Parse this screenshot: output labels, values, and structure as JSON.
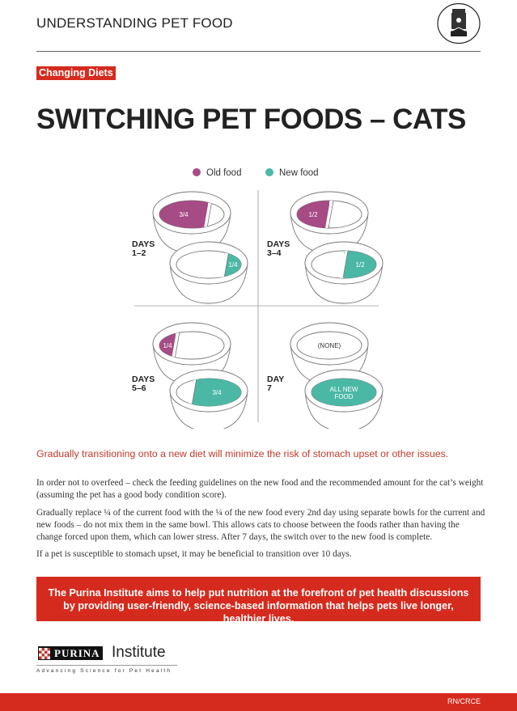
{
  "header": {
    "title": "UNDERSTANDING PET FOOD",
    "icon": "pet-food-bag-icon"
  },
  "badge": "Changing Diets",
  "title": "SWITCHING PET FOODS – CATS",
  "legend": {
    "old": "Old food",
    "new": "New food"
  },
  "colors": {
    "old": "#a64b84",
    "new": "#4bb8a6",
    "accent": "#d52b1e"
  },
  "quadrants": [
    {
      "label1": "DAYS",
      "label2": "1–2",
      "old": 0.75,
      "new": 0.25,
      "old_text": "3/4",
      "new_text": "1/4"
    },
    {
      "label1": "DAYS",
      "label2": "3–4",
      "old": 0.5,
      "new": 0.5,
      "old_text": "1/2",
      "new_text": "1/2"
    },
    {
      "label1": "DAYS",
      "label2": "5–6",
      "old": 0.25,
      "new": 0.75,
      "old_text": "1/4",
      "new_text": "3/4"
    },
    {
      "label1": "DAY",
      "label2": "7",
      "old": 0,
      "new": 1,
      "old_text": "(NONE)",
      "new_text": "ALL NEW FOOD"
    }
  ],
  "caption": "Gradually transitioning onto a new diet will minimize the risk of stomach upset or other issues.",
  "paragraphs": [
    "In order not to overfeed – check the feeding guidelines on the new food and the recommended amount for the cat’s weight (assuming the pet has a good body condition score).",
    "Gradually replace ¼ of the current food with the ¼ of the new food every 2nd day using separate bowls for the current and new foods – do not mix them in the same bowl. This allows cats to choose between the foods rather than having the change forced upon them, which can lower stress. After 7 days, the switch over to the new food is complete.",
    "If a pet is susceptible to stomach upset, it may be beneficial to transition over 10 days."
  ],
  "callout": "The Purina Institute aims to help put nutrition at the forefront of pet health discussions by providing user-friendly, science-based information that helps pets live longer, healthier lives.",
  "logo": {
    "name": "PURINA",
    "suffix": "Institute",
    "tagline": "Advancing Science for Pet Health"
  },
  "footer": {
    "code": "RN/CRCE"
  }
}
